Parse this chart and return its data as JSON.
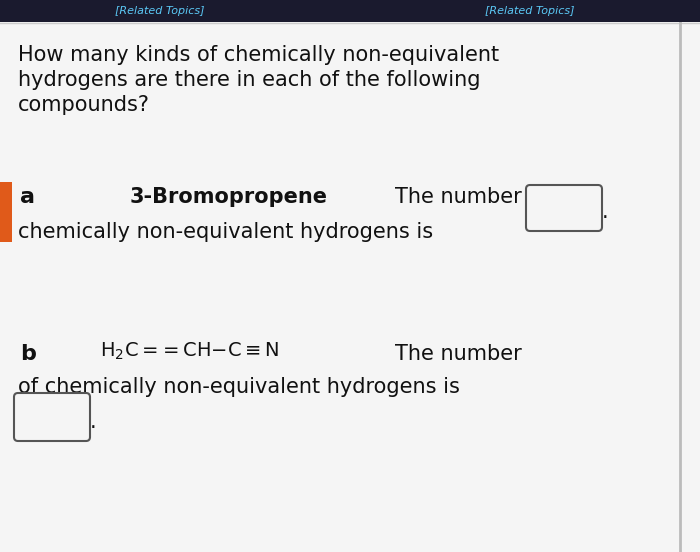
{
  "bg_color": "#f5f5f5",
  "border_color": "#aaaaaa",
  "top_bar_color": "#1a1a2e",
  "top_tab1_text_color": "#5bc8f5",
  "orange_tab_color": "#e05a1a",
  "question_text_line1": "How many kinds of chemically non-equivalent",
  "question_text_line2": "hydrogens are there in each of the following",
  "question_text_line3": "compounds?",
  "text_color": "#111111",
  "question_fontsize": 15,
  "label_fontsize": 16,
  "answer_fontsize": 15,
  "compound_a_fontsize": 15,
  "compound_b_fontsize": 13
}
